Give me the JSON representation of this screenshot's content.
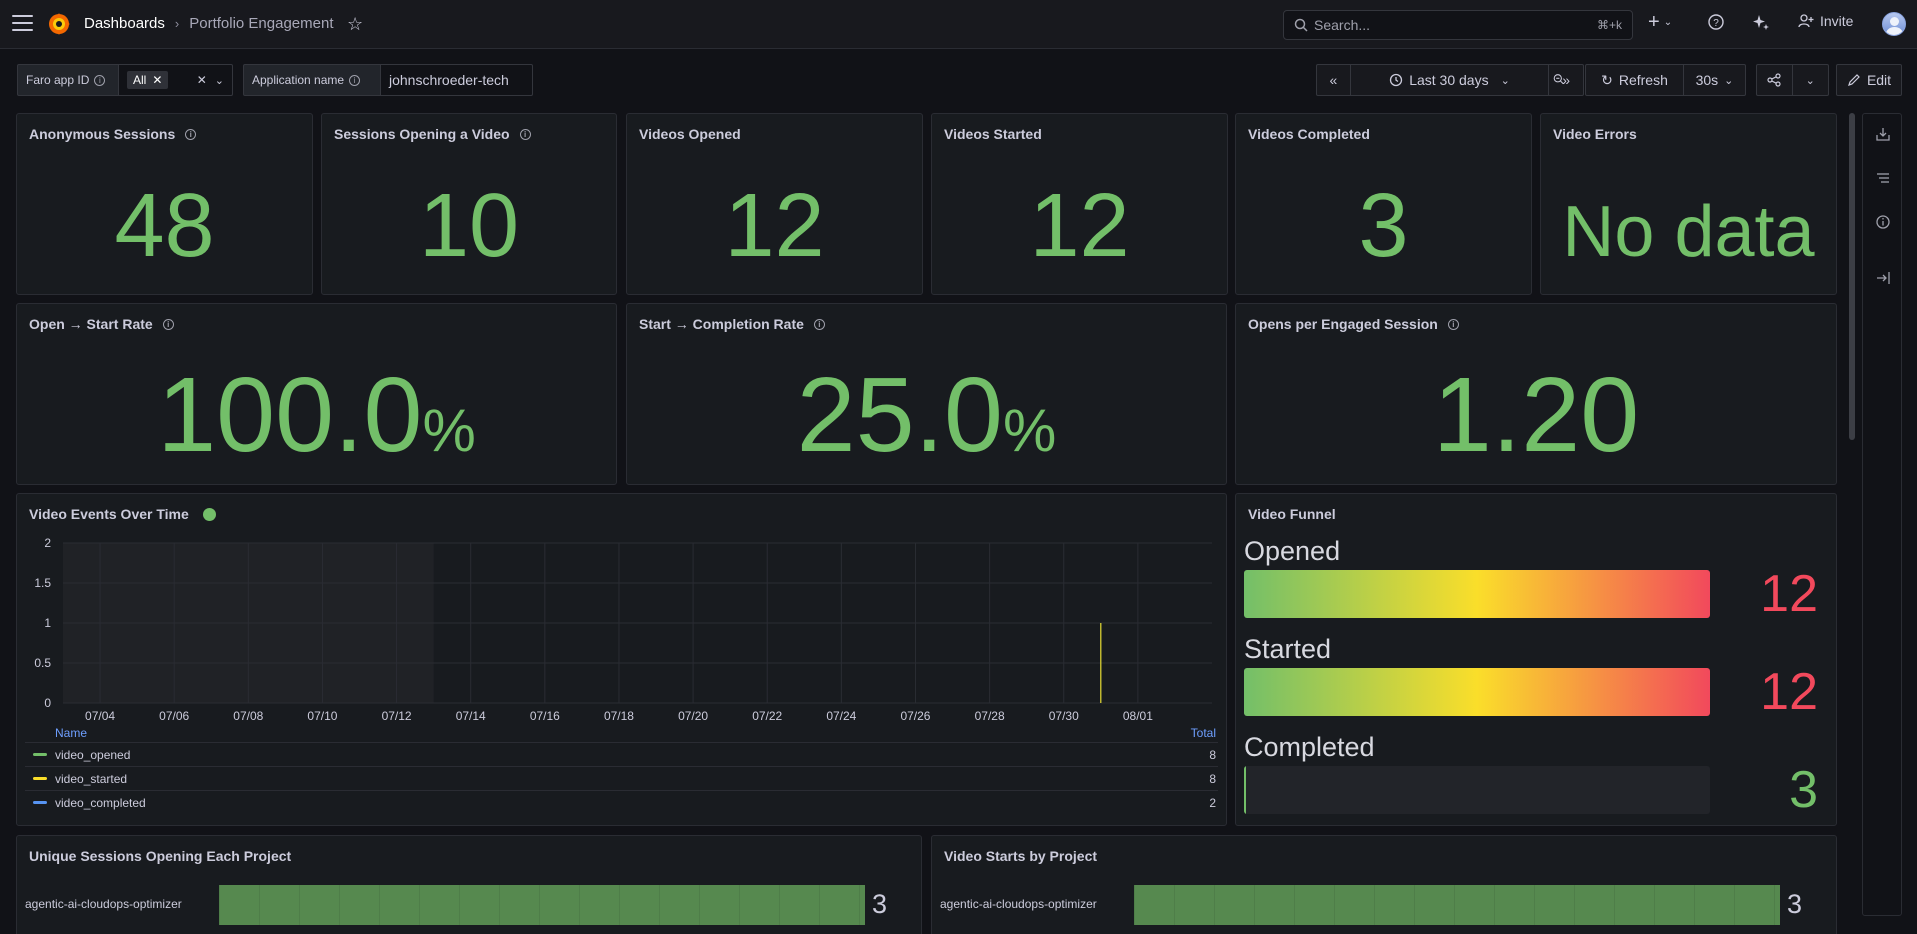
{
  "topbar": {
    "breadcrumb_root": "Dashboards",
    "breadcrumb_current": "Portfolio Engagement",
    "search_placeholder": "Search...",
    "search_shortcut": "⌘+k",
    "invite_label": "Invite"
  },
  "variables": {
    "faro_label": "Faro app ID",
    "faro_value": "All",
    "app_label": "Application name",
    "app_value": "johnschroeder-tech"
  },
  "time_controls": {
    "range_label": "Last 30 days",
    "refresh_label": "Refresh",
    "interval_label": "30s",
    "edit_label": "Edit"
  },
  "stats": [
    {
      "title": "Anonymous Sessions",
      "value": "48"
    },
    {
      "title": "Sessions Opening a Video",
      "value": "10"
    },
    {
      "title": "Videos Opened",
      "value": "12"
    },
    {
      "title": "Videos Started",
      "value": "12"
    },
    {
      "title": "Videos Completed",
      "value": "3"
    },
    {
      "title": "Video Errors",
      "value": "No data"
    }
  ],
  "rates": [
    {
      "title": "Open → Start Rate",
      "value": "100.0",
      "unit": "%"
    },
    {
      "title": "Start → Completion Rate",
      "value": "25.0",
      "unit": "%"
    },
    {
      "title": "Opens per Engaged Session",
      "value": "1.20",
      "unit": ""
    }
  ],
  "timeseries": {
    "title": "Video Events Over Time",
    "legend_name_header": "Name",
    "legend_total_header": "Total",
    "legend": [
      {
        "name": "video_opened",
        "total": "8",
        "color": "#73bf69"
      },
      {
        "name": "video_started",
        "total": "8",
        "color": "#fade2a"
      },
      {
        "name": "video_completed",
        "total": "2",
        "color": "#5794f2"
      }
    ]
  },
  "chart_data": {
    "type": "line",
    "title": "Video Events Over Time",
    "x_ticks": [
      "07/04",
      "07/06",
      "07/08",
      "07/10",
      "07/12",
      "07/14",
      "07/16",
      "07/18",
      "07/20",
      "07/22",
      "07/24",
      "07/26",
      "07/28",
      "07/30",
      "08/01"
    ],
    "y_ticks": [
      "0",
      "0.5",
      "1",
      "1.5",
      "2"
    ],
    "ylim": [
      0,
      2
    ],
    "xlim_days": [
      "2025-07-03",
      "2025-08-03"
    ],
    "grid": true,
    "series": [
      {
        "name": "video_opened",
        "color": "#73bf69",
        "points": [
          [
            "07/31",
            0
          ],
          [
            "07/31",
            1
          ],
          [
            "07/31",
            0
          ]
        ]
      },
      {
        "name": "video_started",
        "color": "#fade2a",
        "points": [
          [
            "07/31",
            0
          ],
          [
            "07/31",
            1
          ],
          [
            "07/31",
            0
          ]
        ]
      },
      {
        "name": "video_completed",
        "color": "#5794f2",
        "points": []
      }
    ]
  },
  "funnel": {
    "title": "Video Funnel",
    "max": 12,
    "items": [
      {
        "label": "Opened",
        "value": 12,
        "text": "12",
        "color": "#f2495c"
      },
      {
        "label": "Started",
        "value": 12,
        "text": "12",
        "color": "#f2495c"
      },
      {
        "label": "Completed",
        "value": 3,
        "text": "3",
        "color": "#73bf69"
      }
    ]
  },
  "unique_sessions": {
    "title": "Unique Sessions Opening Each Project",
    "rows": [
      {
        "name": "agentic-ai-cloudops-optimizer",
        "value": 3,
        "text": "3"
      }
    ],
    "max": 3
  },
  "video_starts": {
    "title": "Video Starts by Project",
    "rows": [
      {
        "name": "agentic-ai-cloudops-optimizer",
        "value": 3,
        "text": "3"
      }
    ],
    "max": 3
  }
}
